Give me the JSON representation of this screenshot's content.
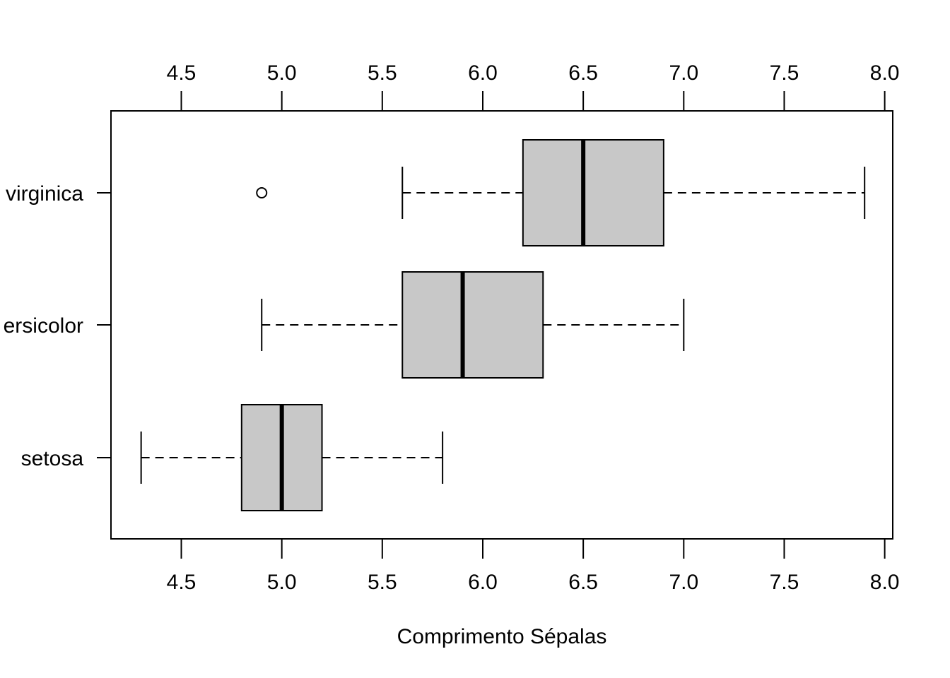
{
  "chart_data": {
    "type": "boxplot",
    "orientation": "horizontal",
    "xlabel": "Comprimento Sépalas",
    "ylabel": "",
    "xlim": [
      4.15,
      8.04
    ],
    "x_ticks": [
      "4.5",
      "5.0",
      "5.5",
      "6.0",
      "6.5",
      "7.0",
      "7.5",
      "8.0"
    ],
    "tick_axes": [
      "top",
      "bottom"
    ],
    "grid": false,
    "box_fill": "#c8c8c8",
    "line_color": "#000000",
    "categories": [
      "setosa",
      "versicolor",
      "virginica"
    ],
    "category_labels": [
      "setosa",
      "ersicolor",
      "virginica"
    ],
    "boxes": [
      {
        "name": "setosa",
        "whisker_low": 4.3,
        "q1": 4.8,
        "median": 5.0,
        "q3": 5.2,
        "whisker_high": 5.8,
        "outliers": []
      },
      {
        "name": "versicolor",
        "whisker_low": 4.9,
        "q1": 5.6,
        "median": 5.9,
        "q3": 6.3,
        "whisker_high": 7.0,
        "outliers": []
      },
      {
        "name": "virginica",
        "whisker_low": 5.6,
        "q1": 6.2,
        "median": 6.5,
        "q3": 6.9,
        "whisker_high": 7.9,
        "outliers": [
          4.9
        ]
      }
    ]
  }
}
